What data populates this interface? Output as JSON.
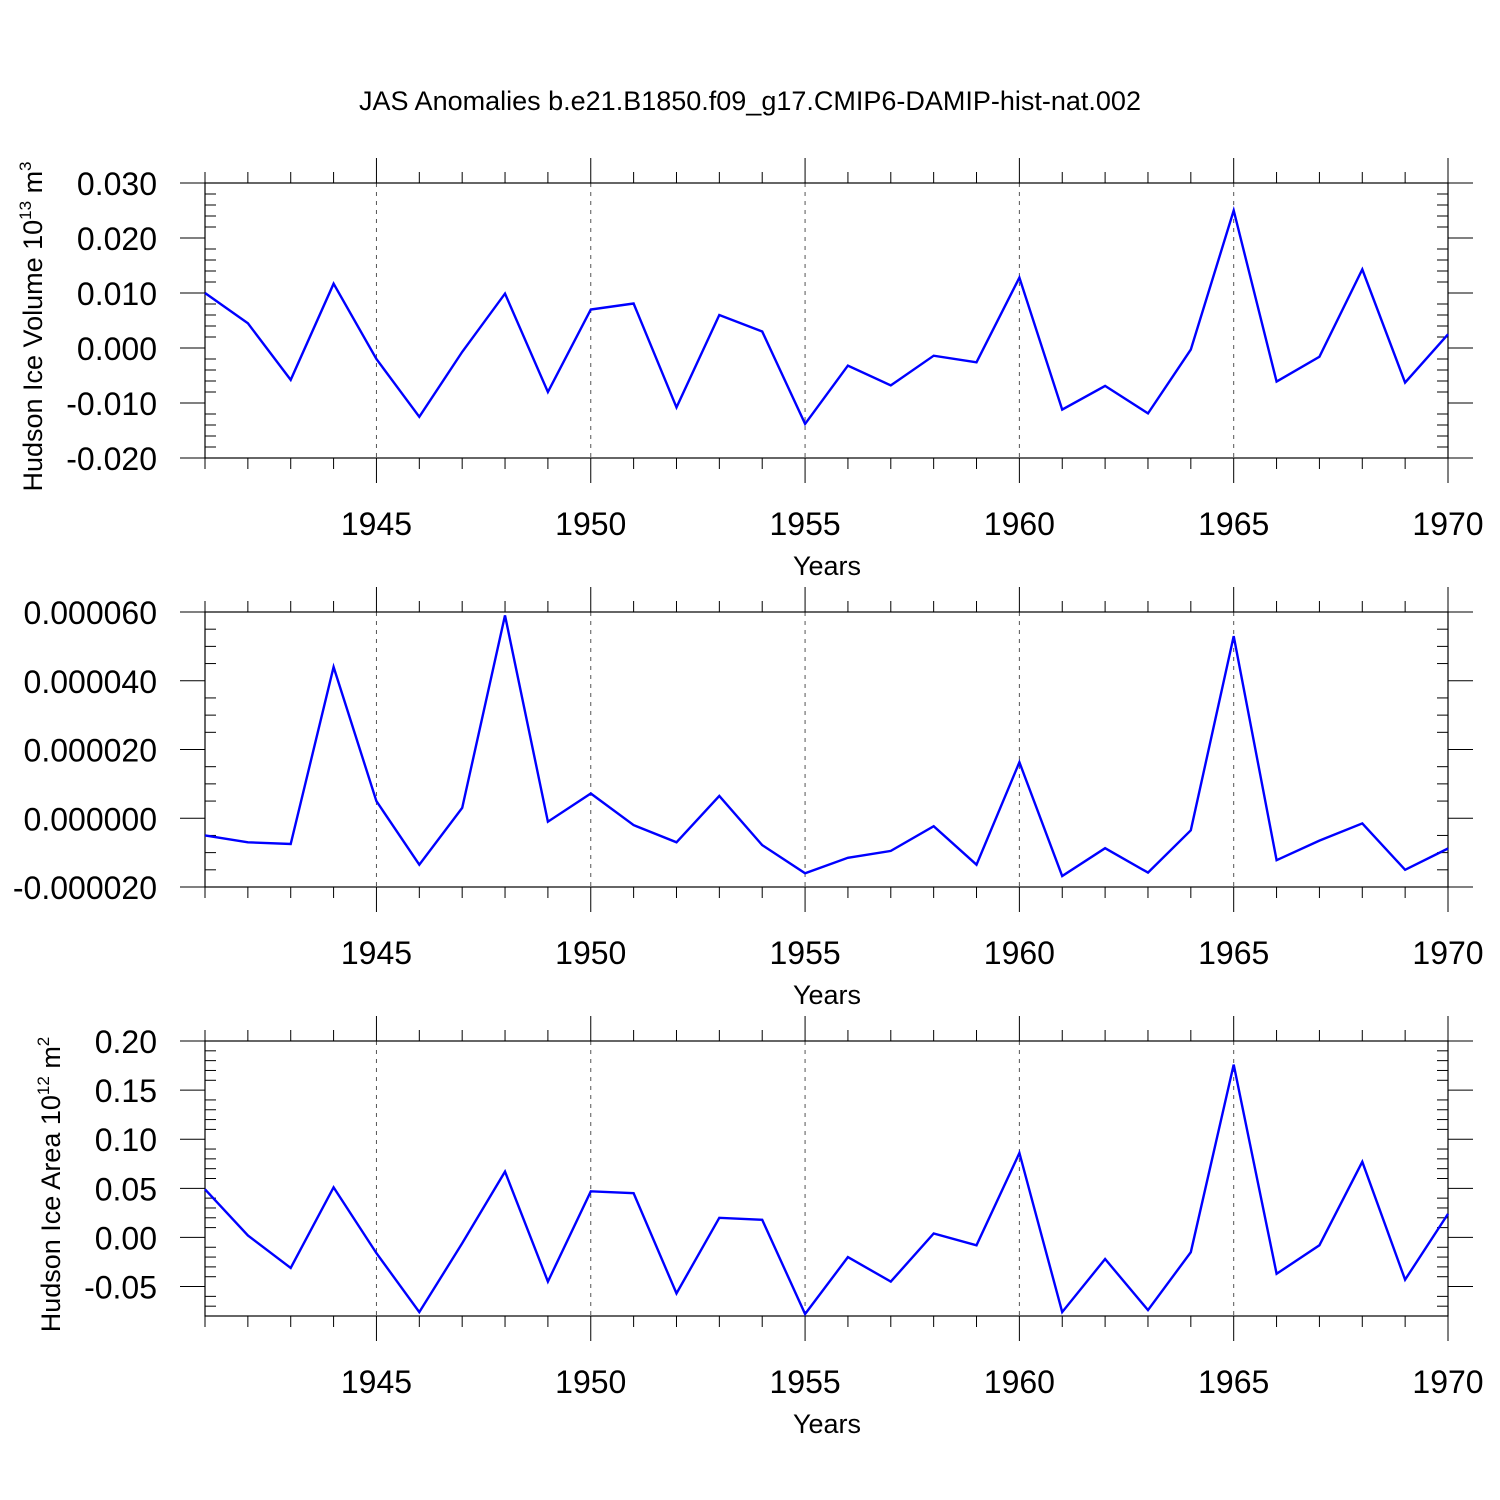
{
  "title": "JAS Anomalies b.e21.B1850.f09_g17.CMIP6-DAMIP-hist-nat.002",
  "colors": {
    "series": "#0000ff",
    "axes": "#000000",
    "grid": "#555555"
  },
  "chart_data": [
    {
      "type": "line",
      "ylabel": "Hudson Ice Volume 10",
      "ylabel_sup": "13",
      "ylabel_unit": " m",
      "ylabel_unit_sup": "3",
      "xlabel": "Years",
      "xlim": [
        1941,
        1970
      ],
      "ylim": [
        -0.02,
        0.03
      ],
      "xticks": [
        1945,
        1950,
        1955,
        1960,
        1965,
        1970
      ],
      "yticks": [
        -0.02,
        -0.01,
        0.0,
        0.01,
        0.02,
        0.03
      ],
      "ytick_labels": [
        "-0.020",
        "-0.010",
        "0.000",
        "0.010",
        "0.020",
        "0.030"
      ],
      "vertical_grid": "dashed at major x ticks",
      "x": [
        1941,
        1942,
        1943,
        1944,
        1945,
        1946,
        1947,
        1948,
        1949,
        1950,
        1951,
        1952,
        1953,
        1954,
        1955,
        1956,
        1957,
        1958,
        1959,
        1960,
        1961,
        1962,
        1963,
        1964,
        1965,
        1966,
        1967,
        1968,
        1969,
        1970
      ],
      "values": [
        0.01,
        0.0045,
        -0.0058,
        0.0117,
        -0.002,
        -0.0125,
        -0.0007,
        0.0099,
        -0.008,
        0.007,
        0.0081,
        -0.0108,
        0.006,
        0.003,
        -0.0138,
        -0.0032,
        -0.0068,
        -0.0014,
        -0.0026,
        0.0128,
        -0.0112,
        -0.0069,
        -0.0119,
        -0.0003,
        0.025,
        -0.0061,
        -0.0016,
        0.0143,
        -0.0063,
        0.0025
      ]
    },
    {
      "type": "line",
      "ylabel": "",
      "xlabel": "Years",
      "xlim": [
        1941,
        1970
      ],
      "ylim": [
        -2e-05,
        6e-05
      ],
      "xticks": [
        1945,
        1950,
        1955,
        1960,
        1965,
        1970
      ],
      "yticks": [
        -2e-05,
        0.0,
        2e-05,
        4e-05,
        6e-05
      ],
      "ytick_labels": [
        "-0.000020",
        "0.000000",
        "0.000020",
        "0.000040",
        "0.000060"
      ],
      "vertical_grid": "dashed at major x ticks",
      "x": [
        1941,
        1942,
        1943,
        1944,
        1945,
        1946,
        1947,
        1948,
        1949,
        1950,
        1951,
        1952,
        1953,
        1954,
        1955,
        1956,
        1957,
        1958,
        1959,
        1960,
        1961,
        1962,
        1963,
        1964,
        1965,
        1966,
        1967,
        1968,
        1969,
        1970
      ],
      "values": [
        -5e-06,
        -7e-06,
        -7.5e-06,
        4.4e-05,
        5e-06,
        -1.35e-05,
        3e-06,
        5.9e-05,
        -1e-06,
        7.2e-06,
        -2e-06,
        -7e-06,
        6.5e-06,
        -7.8e-06,
        -1.6e-05,
        -1.15e-05,
        -9.5e-06,
        -2.3e-06,
        -1.35e-05,
        1.63e-05,
        -1.68e-05,
        -8.7e-06,
        -1.58e-05,
        -3.5e-06,
        5.3e-05,
        -1.22e-05,
        -6.5e-06,
        -1.5e-06,
        -1.5e-05,
        -8.8e-06
      ]
    },
    {
      "type": "line",
      "ylabel": "Hudson Ice Area 10",
      "ylabel_sup": "12",
      "ylabel_unit": " m",
      "ylabel_unit_sup": "2",
      "xlabel": "Years",
      "xlim": [
        1941,
        1970
      ],
      "ylim": [
        -0.08,
        0.2
      ],
      "xticks": [
        1945,
        1950,
        1955,
        1960,
        1965,
        1970
      ],
      "yticks": [
        -0.05,
        0.0,
        0.05,
        0.1,
        0.15,
        0.2
      ],
      "ytick_labels": [
        "-0.05",
        "0.00",
        "0.05",
        "0.10",
        "0.15",
        "0.20"
      ],
      "vertical_grid": "dashed at major x ticks",
      "x": [
        1941,
        1942,
        1943,
        1944,
        1945,
        1946,
        1947,
        1948,
        1949,
        1950,
        1951,
        1952,
        1953,
        1954,
        1955,
        1956,
        1957,
        1958,
        1959,
        1960,
        1961,
        1962,
        1963,
        1964,
        1965,
        1966,
        1967,
        1968,
        1969,
        1970
      ],
      "values": [
        0.049,
        0.002,
        -0.031,
        0.051,
        -0.016,
        -0.076,
        -0.006,
        0.067,
        -0.045,
        0.047,
        0.045,
        -0.057,
        0.02,
        0.018,
        -0.078,
        -0.02,
        -0.045,
        0.004,
        -0.008,
        0.086,
        -0.076,
        -0.022,
        -0.074,
        -0.015,
        0.176,
        -0.037,
        -0.008,
        0.077,
        -0.043,
        0.024
      ]
    }
  ]
}
